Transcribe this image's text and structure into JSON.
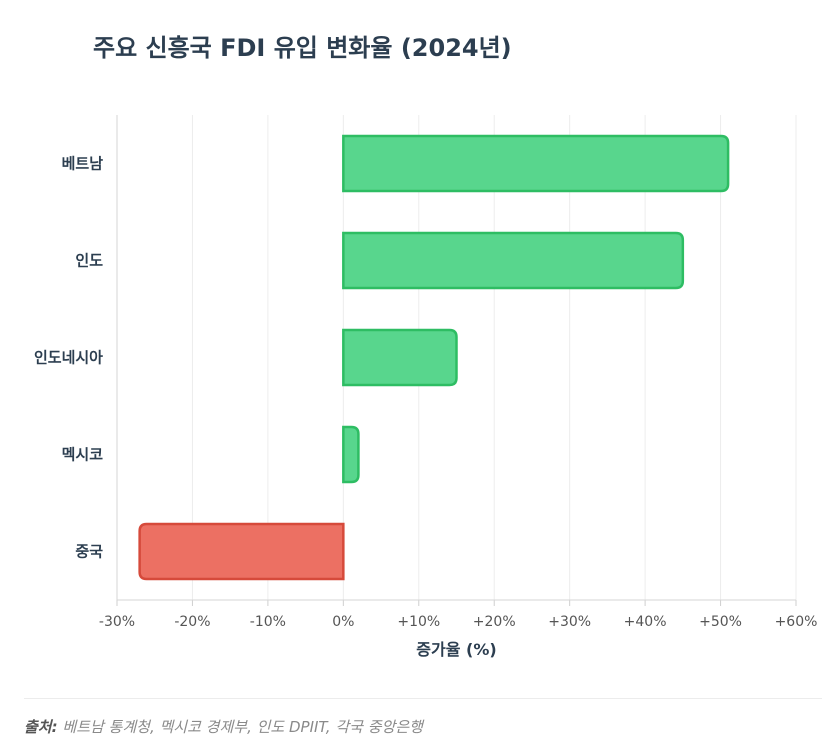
{
  "chart_data": {
    "type": "bar",
    "orientation": "horizontal",
    "title": "주요 신흥국 FDI 유입 변화율 (2024년)",
    "categories": [
      "베트남",
      "인도",
      "인도네시아",
      "멕시코",
      "중국"
    ],
    "values": [
      51,
      45,
      15,
      2,
      -27
    ],
    "xlabel": "증가율 (%)",
    "xlim": [
      -30,
      60
    ],
    "xticks": [
      -30,
      -20,
      -10,
      0,
      10,
      20,
      30,
      40,
      50,
      60
    ],
    "xtick_labels": [
      "-30%",
      "-20%",
      "-10%",
      "0%",
      "+10%",
      "+20%",
      "+30%",
      "+40%",
      "+50%",
      "+60%"
    ],
    "grid": true,
    "colors": {
      "positive_fill": "#58d68d",
      "positive_stroke": "#2ebd63",
      "negative_fill": "#ec7063",
      "negative_stroke": "#d64a3b"
    }
  },
  "source": {
    "label": "출처:",
    "text": "베트남 통계청, 멕시코 경제부, 인도 DPIIT, 각국 중앙은행"
  }
}
